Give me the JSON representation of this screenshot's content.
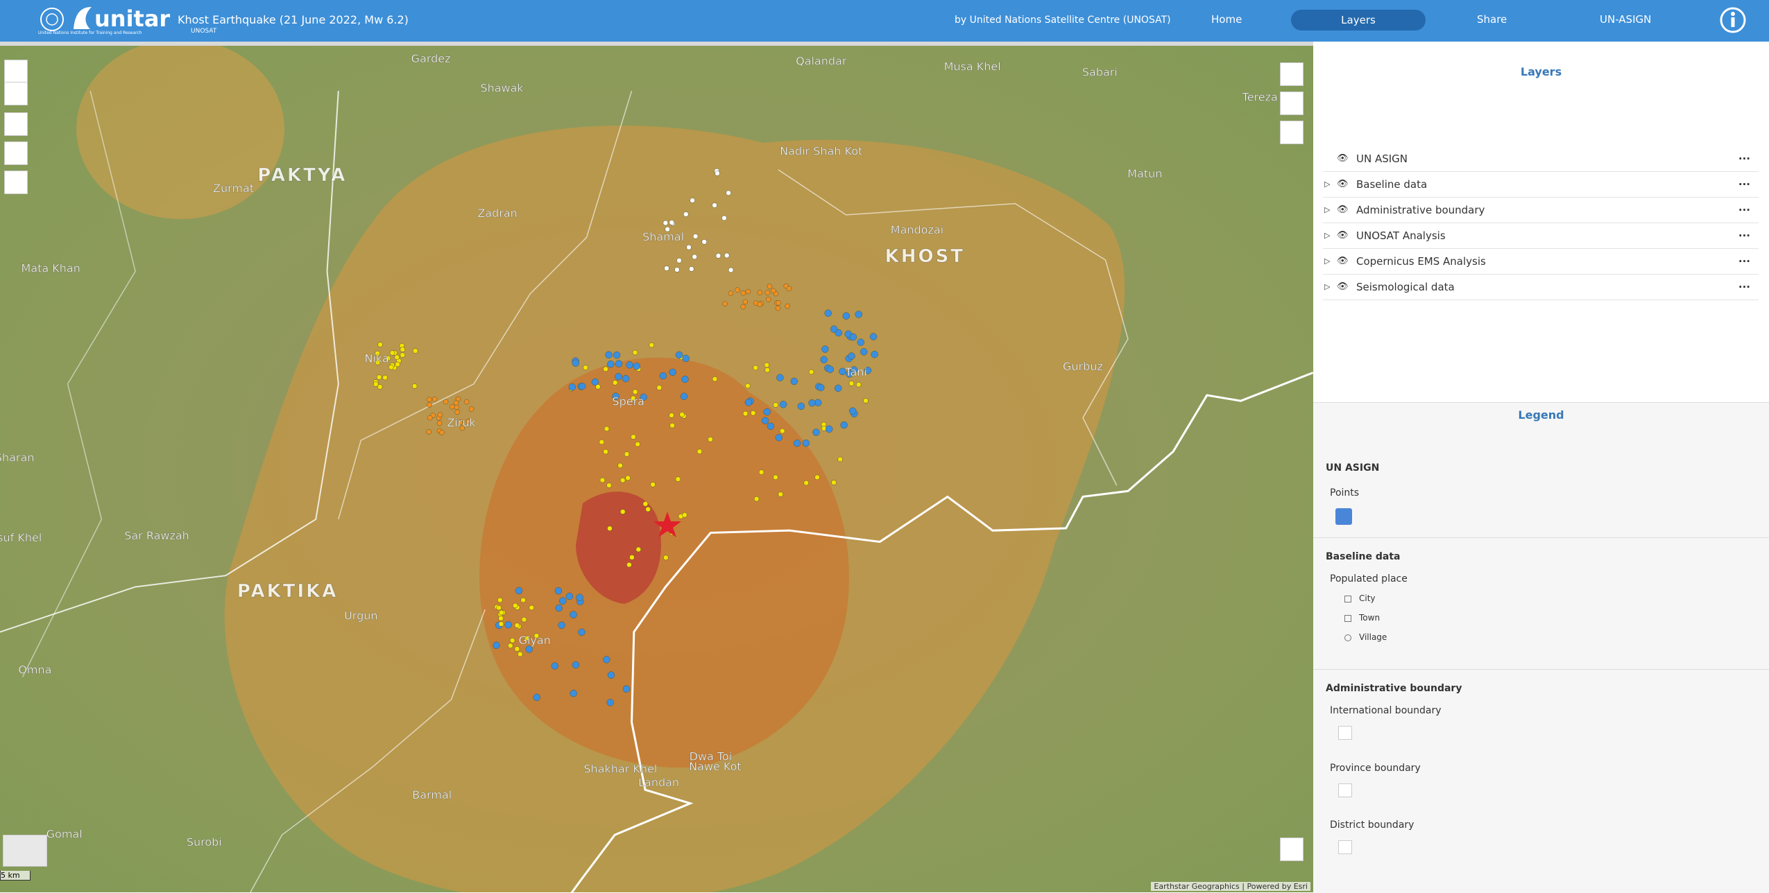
{
  "header": {
    "logo": "unitar",
    "logo_sub": "United Nations Institute for Training and Research",
    "title": "Khost Earthquake (21 June 2022, Mw 6.2)",
    "title_sub": "UNOSAT",
    "credit": "by United Nations Satellite Centre (UNOSAT)",
    "nav": [
      "Home",
      "Layers",
      "Share",
      "UN-ASIGN"
    ]
  },
  "map": {
    "labels": [
      "Gardez",
      "Shawak",
      "Qalandar",
      "Musa Khel",
      "Sabari",
      "Tereza",
      "Zurmat",
      "PAKTYA",
      "Zadran",
      "Nadir Shah Kot",
      "Matun",
      "Mata Khan",
      "KHOST",
      "Mandozai",
      "Shamal",
      "Gurbuz",
      "Nika",
      "Spera",
      "Tani",
      "Ziruk",
      "Sharan",
      "Yosuf Khel",
      "Sar Rawzah",
      "PAKTIKA",
      "Urgun",
      "Giyan",
      "Omna",
      "Barmal",
      "Gomal",
      "Surobi",
      "Shakhar Khel",
      "Dwa Toi",
      "Nawe Kot",
      "Landan"
    ],
    "scale": "5 km",
    "attribution": "Earthstar Geographics | Powered by Esri"
  },
  "layers": {
    "title": "Layers",
    "items": [
      "UN ASIGN",
      "Baseline data",
      "Administrative boundary",
      "UNOSAT Analysis",
      "Copernicus EMS Analysis",
      "Seismological data"
    ]
  },
  "legend": {
    "title": "Legend",
    "sections": [
      {
        "title": "UN ASIGN",
        "items": [
          "Points"
        ]
      },
      {
        "title": "Baseline data",
        "items": [
          "Populated place",
          "City",
          "Town",
          "Village"
        ]
      },
      {
        "title": "Administrative boundary",
        "items": [
          "International boundary",
          "Province boundary",
          "District boundary"
        ]
      }
    ]
  }
}
